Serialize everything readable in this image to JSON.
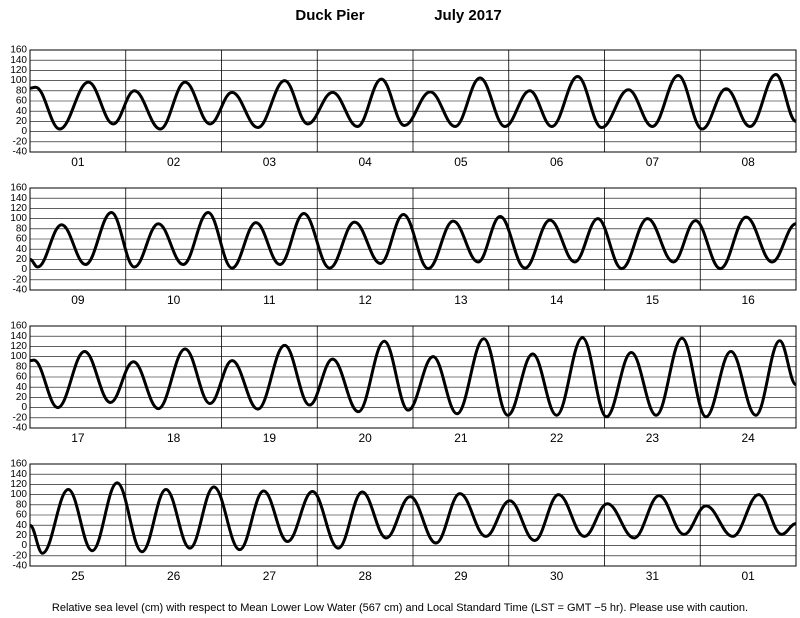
{
  "title": "Duck Pier",
  "subtitle": "July   2017",
  "footer": "Relative sea level (cm) with respect to Mean Lower Low Water (567 cm) and Local Standard Time (LST = GMT −5 hr). Please use with caution.",
  "chart_data": [
    {
      "type": "line",
      "categories": [
        "01",
        "02",
        "03",
        "04",
        "05",
        "06",
        "07",
        "08"
      ],
      "x": [
        0,
        0.06,
        0.31,
        0.61,
        0.87,
        1.09,
        1.36,
        1.62,
        1.88,
        2.11,
        2.38,
        2.66,
        2.9,
        3.16,
        3.42,
        3.67,
        3.91,
        4.18,
        4.44,
        4.7,
        4.96,
        5.22,
        5.45,
        5.72,
        5.97,
        6.25,
        6.5,
        6.77,
        7.02,
        7.27,
        7.52,
        7.79,
        8.0
      ],
      "values": [
        85,
        87,
        5,
        97,
        15,
        80,
        5,
        97,
        15,
        77,
        8,
        100,
        15,
        77,
        10,
        103,
        12,
        78,
        10,
        105,
        10,
        80,
        10,
        108,
        8,
        82,
        10,
        110,
        5,
        84,
        10,
        112,
        20
      ],
      "color": "#000000",
      "xlim": [
        0,
        8
      ],
      "xticks": [
        0,
        1,
        2,
        3,
        4,
        5,
        6,
        7,
        8
      ],
      "ylim": [
        -40,
        160
      ],
      "yticks": [
        -40,
        -20,
        0,
        20,
        40,
        60,
        80,
        100,
        120,
        140,
        160
      ],
      "grid": true
    },
    {
      "type": "line",
      "categories": [
        "09",
        "10",
        "11",
        "12",
        "13",
        "14",
        "15",
        "16"
      ],
      "x": [
        0,
        0.08,
        0.33,
        0.58,
        0.85,
        1.09,
        1.34,
        1.6,
        1.86,
        2.11,
        2.36,
        2.61,
        2.86,
        3.13,
        3.39,
        3.66,
        3.9,
        4.16,
        4.42,
        4.68,
        4.91,
        5.17,
        5.43,
        5.69,
        5.93,
        6.18,
        6.45,
        6.72,
        6.95,
        7.21,
        7.48,
        7.75,
        8.0
      ],
      "values": [
        20,
        5,
        88,
        10,
        112,
        5,
        90,
        10,
        112,
        3,
        92,
        10,
        110,
        3,
        93,
        12,
        108,
        2,
        95,
        15,
        104,
        3,
        97,
        15,
        100,
        2,
        100,
        15,
        96,
        2,
        103,
        15,
        90
      ],
      "color": "#000000",
      "xlim": [
        0,
        8
      ],
      "xticks": [
        0,
        1,
        2,
        3,
        4,
        5,
        6,
        7,
        8
      ],
      "ylim": [
        -40,
        160
      ],
      "yticks": [
        -40,
        -20,
        0,
        20,
        40,
        60,
        80,
        100,
        120,
        140,
        160
      ],
      "grid": true
    },
    {
      "type": "line",
      "categories": [
        "17",
        "18",
        "19",
        "20",
        "21",
        "22",
        "23",
        "24"
      ],
      "x": [
        0,
        0.04,
        0.29,
        0.57,
        0.84,
        1.08,
        1.34,
        1.62,
        1.88,
        2.11,
        2.38,
        2.66,
        2.92,
        3.16,
        3.43,
        3.7,
        3.95,
        4.21,
        4.46,
        4.74,
        4.99,
        5.25,
        5.5,
        5.77,
        6.02,
        6.28,
        6.54,
        6.81,
        7.06,
        7.32,
        7.58,
        7.83,
        8.0
      ],
      "values": [
        92,
        93,
        0,
        110,
        10,
        90,
        -2,
        115,
        8,
        92,
        -3,
        122,
        5,
        95,
        -8,
        130,
        -5,
        100,
        -12,
        135,
        -15,
        105,
        -15,
        137,
        -18,
        108,
        -15,
        136,
        -18,
        110,
        -15,
        131,
        45
      ],
      "color": "#000000",
      "xlim": [
        0,
        8
      ],
      "xticks": [
        0,
        1,
        2,
        3,
        4,
        5,
        6,
        7,
        8
      ],
      "ylim": [
        -40,
        160
      ],
      "yticks": [
        -40,
        -20,
        0,
        20,
        40,
        60,
        80,
        100,
        120,
        140,
        160
      ],
      "grid": true
    },
    {
      "type": "line",
      "categories": [
        "25",
        "26",
        "27",
        "28",
        "29",
        "30",
        "31",
        "01"
      ],
      "x": [
        0,
        0.13,
        0.4,
        0.65,
        0.91,
        1.17,
        1.42,
        1.67,
        1.92,
        2.19,
        2.44,
        2.69,
        2.95,
        3.22,
        3.47,
        3.72,
        3.97,
        4.24,
        4.49,
        4.76,
        5.01,
        5.27,
        5.52,
        5.79,
        6.03,
        6.31,
        6.57,
        6.83,
        7.06,
        7.34,
        7.61,
        7.85,
        8.0
      ],
      "values": [
        40,
        -15,
        110,
        -10,
        123,
        -12,
        110,
        -5,
        115,
        -8,
        107,
        8,
        106,
        -5,
        105,
        15,
        96,
        5,
        102,
        18,
        88,
        10,
        100,
        18,
        82,
        15,
        98,
        22,
        78,
        18,
        100,
        22,
        43
      ],
      "color": "#000000",
      "xlim": [
        0,
        8
      ],
      "xticks": [
        0,
        1,
        2,
        3,
        4,
        5,
        6,
        7,
        8
      ],
      "ylim": [
        -40,
        160
      ],
      "yticks": [
        -40,
        -20,
        0,
        20,
        40,
        60,
        80,
        100,
        120,
        140,
        160
      ],
      "grid": true
    }
  ]
}
